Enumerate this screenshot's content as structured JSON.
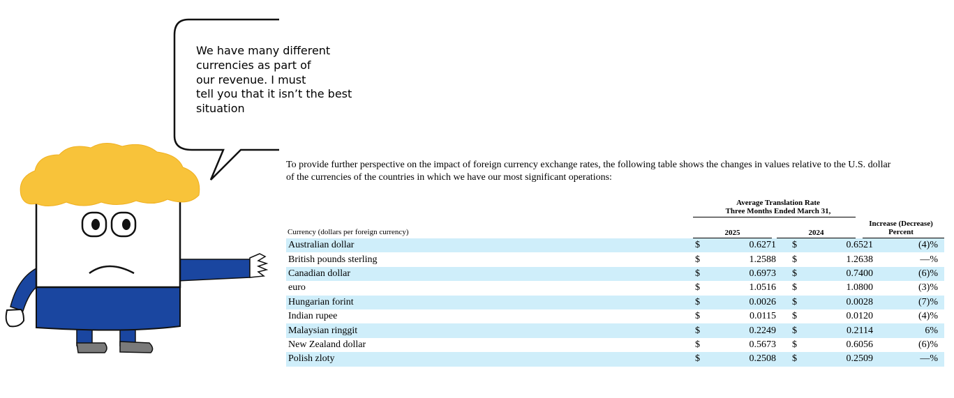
{
  "speech_bubble": {
    "lines": [
      "We have many different",
      "currencies as part of",
      "our revenue. I must",
      "tell you that it isn’t the best",
      "situation"
    ]
  },
  "intro": {
    "line1": "To provide further perspective on the impact of foreign currency exchange rates, the following table shows the changes in values relative to the U.S. dollar",
    "line2": "of the currencies of the countries in which we have our most significant operations:"
  },
  "table": {
    "group_header_line1": "Average Translation Rate",
    "group_header_line2": "Three Months Ended March 31,",
    "col_currency": "Currency (dollars per foreign currency)",
    "col_2025": "2025",
    "col_2024": "2024",
    "col_change_line1": "Increase (Decrease)",
    "col_change_line2": "Percent",
    "currency_symbol": "$",
    "rows": [
      {
        "currency": "Australian dollar",
        "rate_2025": "0.6271",
        "rate_2024": "0.6521",
        "change": "(4)%"
      },
      {
        "currency": "British pounds sterling",
        "rate_2025": "1.2588",
        "rate_2024": "1.2638",
        "change": "—%"
      },
      {
        "currency": "Canadian dollar",
        "rate_2025": "0.6973",
        "rate_2024": "0.7400",
        "change": "(6)%"
      },
      {
        "currency": "euro",
        "rate_2025": "1.0516",
        "rate_2024": "1.0800",
        "change": "(3)%"
      },
      {
        "currency": "Hungarian forint",
        "rate_2025": "0.0026",
        "rate_2024": "0.0028",
        "change": "(7)%"
      },
      {
        "currency": "Indian rupee",
        "rate_2025": "0.0115",
        "rate_2024": "0.0120",
        "change": "(4)%"
      },
      {
        "currency": "Malaysian ringgit",
        "rate_2025": "0.2249",
        "rate_2024": "0.2114",
        "change": "6%"
      },
      {
        "currency": "New Zealand dollar",
        "rate_2025": "0.5673",
        "rate_2024": "0.6056",
        "change": "(6)%"
      },
      {
        "currency": "Polish zloty",
        "rate_2025": "0.2508",
        "rate_2024": "0.2509",
        "change": "—%"
      }
    ]
  },
  "colors": {
    "hair": "#f8c33a",
    "shirt": "#1a46a0",
    "row_highlight": "#cfeefa"
  }
}
